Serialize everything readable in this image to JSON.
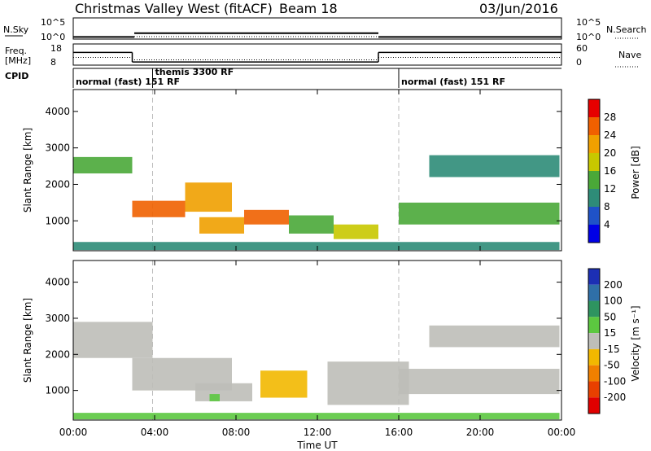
{
  "header": {
    "station": "Christmas Valley West (fitACF)",
    "beam": "Beam 18",
    "date": "03/Jun/2016"
  },
  "nsky_panel": {
    "left_label": "N.Sky",
    "left_top": "10^5",
    "left_bottom": "10^0",
    "right_top": "10^5",
    "right_bottom": "10^0",
    "right_label": "N.Search"
  },
  "freq_panel": {
    "left_label_1": "Freq.",
    "left_label_2": "[MHz]",
    "left_top": "18",
    "left_bottom": "8",
    "right_top": "60",
    "right_bottom": "0",
    "right_label": "Nave"
  },
  "cpid": {
    "label": "CPID",
    "segments": [
      {
        "start_hr": 0.0,
        "end_hr": 3.9,
        "name": "normal (fast) 151 RF"
      },
      {
        "start_hr": 3.9,
        "end_hr": 16.0,
        "name": "themis 3300 RF"
      },
      {
        "start_hr": 16.0,
        "end_hr": 24.0,
        "name": "normal (fast) 151 RF"
      }
    ]
  },
  "x_axis": {
    "label": "Time UT",
    "ticks": [
      "00:00",
      "04:00",
      "08:00",
      "12:00",
      "16:00",
      "20:00",
      "00:00"
    ]
  },
  "power_colorbar": {
    "label": "Power [dB]",
    "ticks": [
      "4",
      "8",
      "12",
      "16",
      "20",
      "24",
      "28"
    ],
    "colors": [
      "#0000e6",
      "#1f52c8",
      "#2e8c78",
      "#4aa838",
      "#c8c800",
      "#f0a000",
      "#f06000",
      "#e60000"
    ]
  },
  "velocity_colorbar": {
    "label": "Velocity [m s⁻¹]",
    "ticks": [
      "200",
      "100",
      "50",
      "15",
      "-15",
      "-50",
      "-100",
      "-200"
    ],
    "colors": [
      "#1c2fb4",
      "#2f6fa8",
      "#2e9460",
      "#5cc840",
      "#bebeb8",
      "#f2b800",
      "#f08000",
      "#e84000",
      "#e00000"
    ]
  },
  "chart_data": {
    "type": "heatmap",
    "x_range_hr": [
      0,
      24
    ],
    "y_range_km": [
      180,
      4600
    ],
    "panels": [
      {
        "name": "power",
        "ylabel": "Slant Range [km]",
        "yticks": [
          "1000",
          "2000",
          "3000",
          "4000"
        ],
        "zlabel": "Power [dB]",
        "regions": [
          {
            "t0": 0.0,
            "t1": 2.9,
            "r0": 2300,
            "r1": 2750,
            "db": 14
          },
          {
            "t0": 2.9,
            "t1": 5.5,
            "r0": 1100,
            "r1": 1550,
            "db": 26
          },
          {
            "t0": 5.5,
            "t1": 7.8,
            "r0": 1250,
            "r1": 2050,
            "db": 22
          },
          {
            "t0": 6.2,
            "t1": 8.4,
            "r0": 650,
            "r1": 1100,
            "db": 22
          },
          {
            "t0": 8.4,
            "t1": 10.6,
            "r0": 900,
            "r1": 1300,
            "db": 24
          },
          {
            "t0": 10.6,
            "t1": 12.8,
            "r0": 650,
            "r1": 1150,
            "db": 14
          },
          {
            "t0": 12.8,
            "t1": 15.0,
            "r0": 500,
            "r1": 900,
            "db": 18
          },
          {
            "t0": 16.0,
            "t1": 23.9,
            "r0": 900,
            "r1": 1500,
            "db": 12
          },
          {
            "t0": 17.5,
            "t1": 23.9,
            "r0": 2200,
            "r1": 2800,
            "db": 10
          },
          {
            "t0": 0.0,
            "t1": 23.9,
            "r0": 200,
            "r1": 420,
            "db": 10
          }
        ]
      },
      {
        "name": "velocity",
        "ylabel": "Slant Range [km]",
        "yticks": [
          "1000",
          "2000",
          "3000",
          "4000"
        ],
        "zlabel": "Velocity [m s⁻¹]",
        "regions": [
          {
            "t0": 0.0,
            "t1": 3.9,
            "r0": 1900,
            "r1": 2900,
            "v": 0
          },
          {
            "t0": 2.9,
            "t1": 7.8,
            "r0": 1000,
            "r1": 1900,
            "v": 0
          },
          {
            "t0": 6.0,
            "t1": 8.8,
            "r0": 700,
            "r1": 1200,
            "v": 0
          },
          {
            "t0": 9.2,
            "t1": 11.5,
            "r0": 800,
            "r1": 1550,
            "v": -40
          },
          {
            "t0": 6.7,
            "t1": 7.2,
            "r0": 700,
            "r1": 900,
            "v": 25
          },
          {
            "t0": 12.5,
            "t1": 16.5,
            "r0": 600,
            "r1": 1800,
            "v": 0
          },
          {
            "t0": 16.0,
            "t1": 23.9,
            "r0": 900,
            "r1": 1600,
            "v": 0
          },
          {
            "t0": 17.5,
            "t1": 23.9,
            "r0": 2200,
            "r1": 2800,
            "v": 0
          },
          {
            "t0": 0.0,
            "t1": 23.9,
            "r0": 200,
            "r1": 380,
            "v": 20
          }
        ]
      }
    ],
    "freq_mhz": [
      {
        "t0": 0.0,
        "t1": 2.9,
        "value": 14.0
      },
      {
        "t0": 2.9,
        "t1": 15.0,
        "value": 9.5
      },
      {
        "t0": 15.0,
        "t1": 24.0,
        "value": 14.0
      }
    ],
    "nave": [
      {
        "t0": 0.0,
        "t1": 3.0,
        "value": 22
      },
      {
        "t0": 3.0,
        "t1": 15.0,
        "value": 15
      },
      {
        "t0": 15.0,
        "t1": 24.0,
        "value": 22
      }
    ],
    "nsky_log10": [
      {
        "t0": 0.0,
        "t1": 3.0,
        "value": 0.5
      },
      {
        "t0": 3.0,
        "t1": 15.0,
        "value": 1.4
      },
      {
        "t0": 15.0,
        "t1": 24.0,
        "value": 0.5
      }
    ]
  }
}
